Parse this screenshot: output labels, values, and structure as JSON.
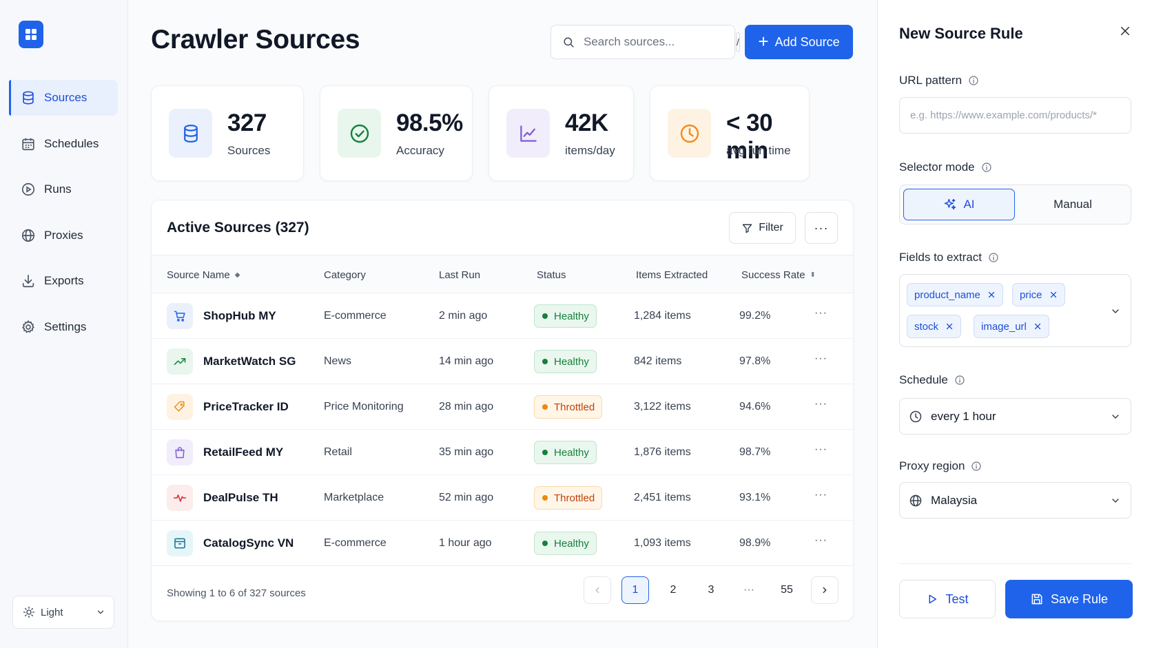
{
  "sidebar": {
    "items": [
      {
        "label": "Sources",
        "icon": "database-icon",
        "active": true
      },
      {
        "label": "Schedules",
        "icon": "calendar-icon"
      },
      {
        "label": "Runs",
        "icon": "play-circle-icon"
      },
      {
        "label": "Proxies",
        "icon": "globe-icon"
      },
      {
        "label": "Exports",
        "icon": "download-icon"
      },
      {
        "label": "Settings",
        "icon": "gear-icon"
      }
    ],
    "theme": "Light"
  },
  "header": {
    "title": "Crawler Sources",
    "search_placeholder": "Search sources...",
    "search_shortcut": "/",
    "add_label": "Add Source"
  },
  "stats": [
    {
      "value": "327",
      "label": "Sources",
      "icon": "database-icon",
      "color": "#1f63ea"
    },
    {
      "value": "98.5%",
      "label": "Accuracy",
      "icon": "check-circle-icon",
      "color": "#15803d"
    },
    {
      "value": "42K",
      "label": "items/day",
      "icon": "line-chart-icon",
      "color": "#7c5cd6"
    },
    {
      "value": "< 30 min",
      "label": "avg run time",
      "icon": "clock-icon",
      "color": "#f08c1a"
    }
  ],
  "table": {
    "title": "Active Sources (327)",
    "filter_label": "Filter",
    "more_label": "···",
    "columns": [
      "Source Name",
      "Category",
      "Last Run",
      "Status",
      "Items Extracted",
      "Success Rate"
    ],
    "rows": [
      {
        "name": "ShopHub MY",
        "category": "E-commerce",
        "last_run": "2 min ago",
        "status": "Healthy",
        "items": "1,284 items",
        "rate": "99.2%",
        "icon": "cart-icon"
      },
      {
        "name": "MarketWatch SG",
        "category": "News",
        "last_run": "14 min ago",
        "status": "Healthy",
        "items": "842 items",
        "rate": "97.8%",
        "icon": "trend-up-icon"
      },
      {
        "name": "PriceTracker ID",
        "category": "Price Monitoring",
        "last_run": "28 min ago",
        "status": "Throttled",
        "items": "3,122 items",
        "rate": "94.6%",
        "icon": "tag-icon"
      },
      {
        "name": "RetailFeed MY",
        "category": "Retail",
        "last_run": "35 min ago",
        "status": "Healthy",
        "items": "1,876 items",
        "rate": "98.7%",
        "icon": "shopping-bag-icon"
      },
      {
        "name": "DealPulse TH",
        "category": "Marketplace",
        "last_run": "52 min ago",
        "status": "Throttled",
        "items": "2,451 items",
        "rate": "93.1%",
        "icon": "pulse-icon"
      },
      {
        "name": "CatalogSync VN",
        "category": "E-commerce",
        "last_run": "1 hour ago",
        "status": "Healthy",
        "items": "1,093 items",
        "rate": "98.9%",
        "icon": "archive-icon"
      }
    ],
    "row_menu": "···",
    "footer": "Showing 1 to 6 of 327 sources",
    "pages": [
      "1",
      "2",
      "3",
      "···",
      "55"
    ],
    "current_page": "1"
  },
  "panel": {
    "title": "New Source Rule",
    "url_label": "URL pattern",
    "url_placeholder": "e.g. https://www.example.com/products/*",
    "selector_label": "Selector mode",
    "selector_options": [
      "AI",
      "Manual"
    ],
    "fields_label": "Fields to extract",
    "fields": [
      "product_name",
      "price",
      "stock",
      "image_url"
    ],
    "schedule_label": "Schedule",
    "schedule_value": "every 1 hour",
    "proxy_label": "Proxy region",
    "proxy_value": "Malaysia",
    "test_label": "Test",
    "save_label": "Save Rule"
  },
  "colors": {
    "accent": "#1f63ea",
    "healthy": "#15803d",
    "throttled": "#ea8a12"
  }
}
